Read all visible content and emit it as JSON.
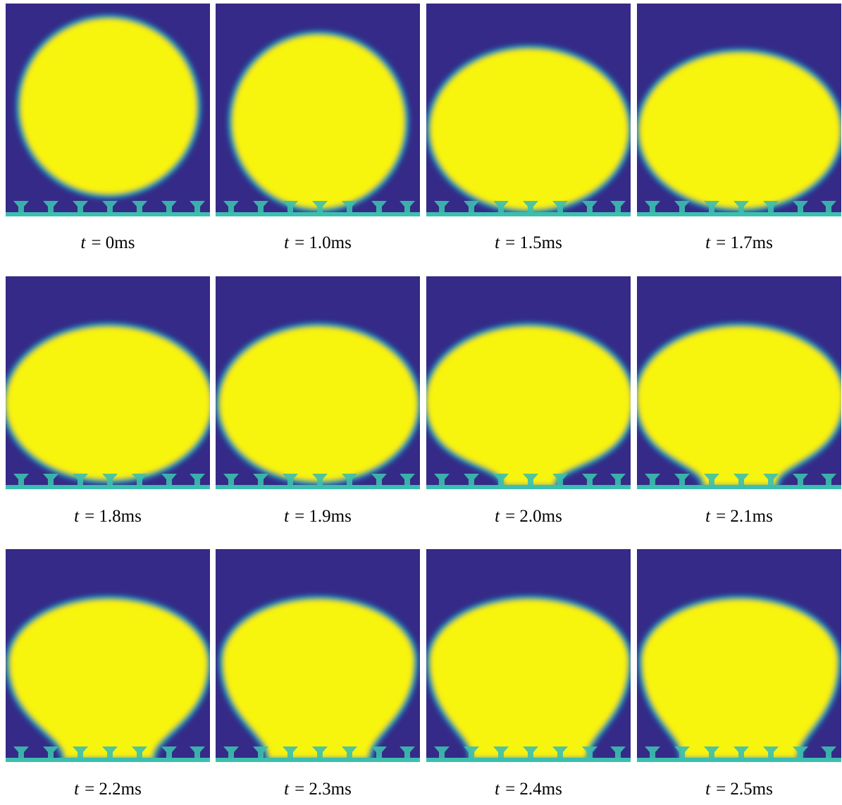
{
  "panels": [
    {
      "symbol": "t",
      "label": "= 0ms"
    },
    {
      "symbol": "t",
      "label": "= 1.0ms"
    },
    {
      "symbol": "t",
      "label": "= 1.5ms"
    },
    {
      "symbol": "t",
      "label": "= 1.7ms"
    },
    {
      "symbol": "t",
      "label": "= 1.8ms"
    },
    {
      "symbol": "t",
      "label": "= 1.9ms"
    },
    {
      "symbol": "t",
      "label": "= 2.0ms"
    },
    {
      "symbol": "t",
      "label": "= 2.1ms"
    },
    {
      "symbol": "t",
      "label": "= 2.2ms"
    },
    {
      "symbol": "t",
      "label": "= 2.3ms"
    },
    {
      "symbol": "t",
      "label": "= 2.4ms"
    },
    {
      "symbol": "t",
      "label": "= 2.5ms"
    }
  ]
}
